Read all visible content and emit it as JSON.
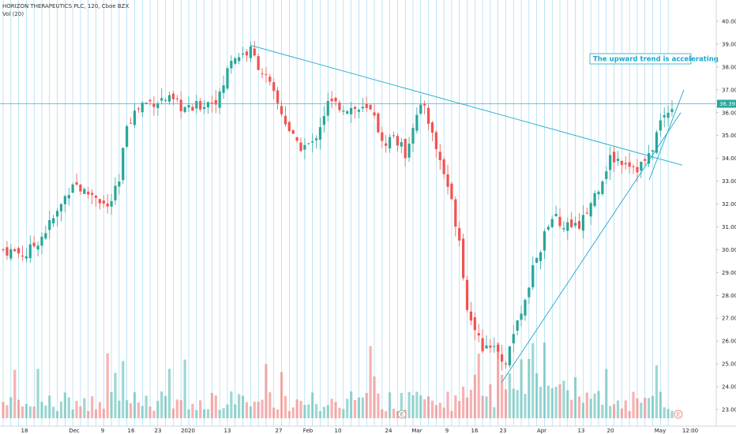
{
  "header": {
    "symbol_line": "HORIZON THERAPEUTICS PLC, 120, Cboe BZX",
    "volume_line": "Vol (20)"
  },
  "chart_data": {
    "type": "candlestick",
    "title": "HORIZON THERAPEUTICS PLC, 120, Cboe BZX",
    "ylim": [
      22.6,
      40.25
    ],
    "y_ticks": [
      "40.00",
      "39.00",
      "38.00",
      "37.00",
      "36.00",
      "35.00",
      "34.00",
      "33.00",
      "32.00",
      "31.00",
      "30.00",
      "29.00",
      "28.00",
      "27.00",
      "26.00",
      "25.00",
      "24.00",
      "23.00"
    ],
    "x_ticks": [
      "18",
      "Dec",
      "9",
      "16",
      "23",
      "2020",
      "13",
      "27",
      "Feb",
      "10",
      "24",
      "Mar",
      "9",
      "16",
      "23",
      "Apr",
      "13",
      "20",
      "May",
      "12:00"
    ],
    "last_price_label": "36.39",
    "last_price": 36.39,
    "annotation": "The upward trend is accelerating",
    "event_markers": [
      "E",
      "E"
    ],
    "colors": {
      "up": "#26a69a",
      "down": "#ef5350",
      "grid": "#6fc3f0",
      "trendline": "#1aa9cc",
      "price_line": "#4aa8d8"
    },
    "price_path": [
      [
        0,
        30.0
      ],
      [
        6,
        29.8
      ],
      [
        10,
        30.6
      ],
      [
        14,
        31.6
      ],
      [
        18,
        33.0
      ],
      [
        21,
        32.5
      ],
      [
        24,
        32.4
      ],
      [
        27,
        31.8
      ],
      [
        30,
        32.9
      ],
      [
        32,
        35.6
      ],
      [
        36,
        36.4
      ],
      [
        42,
        36.6
      ],
      [
        48,
        36.1
      ],
      [
        56,
        36.7
      ],
      [
        59,
        38.4
      ],
      [
        64,
        38.7
      ],
      [
        68,
        37.5
      ],
      [
        72,
        36.0
      ],
      [
        76,
        34.5
      ],
      [
        80,
        34.6
      ],
      [
        84,
        36.4
      ],
      [
        90,
        36.2
      ],
      [
        96,
        36.0
      ],
      [
        98,
        34.6
      ],
      [
        101,
        35.0
      ],
      [
        104,
        34.2
      ],
      [
        106,
        35.5
      ],
      [
        109,
        36.4
      ],
      [
        111,
        35.0
      ],
      [
        115,
        32.8
      ],
      [
        118,
        30.5
      ],
      [
        120,
        27.5
      ],
      [
        124,
        25.7
      ],
      [
        127,
        26.0
      ],
      [
        130,
        25.0
      ],
      [
        133,
        26.9
      ],
      [
        136,
        28.6
      ],
      [
        140,
        30.6
      ],
      [
        143,
        31.4
      ],
      [
        147,
        30.8
      ],
      [
        150,
        31.3
      ],
      [
        154,
        32.8
      ],
      [
        157,
        34.0
      ],
      [
        161,
        33.9
      ],
      [
        164,
        33.6
      ],
      [
        167,
        34.0
      ],
      [
        170,
        35.6
      ],
      [
        173,
        36.39
      ]
    ],
    "volume_ylim": [
      0,
      130
    ]
  }
}
